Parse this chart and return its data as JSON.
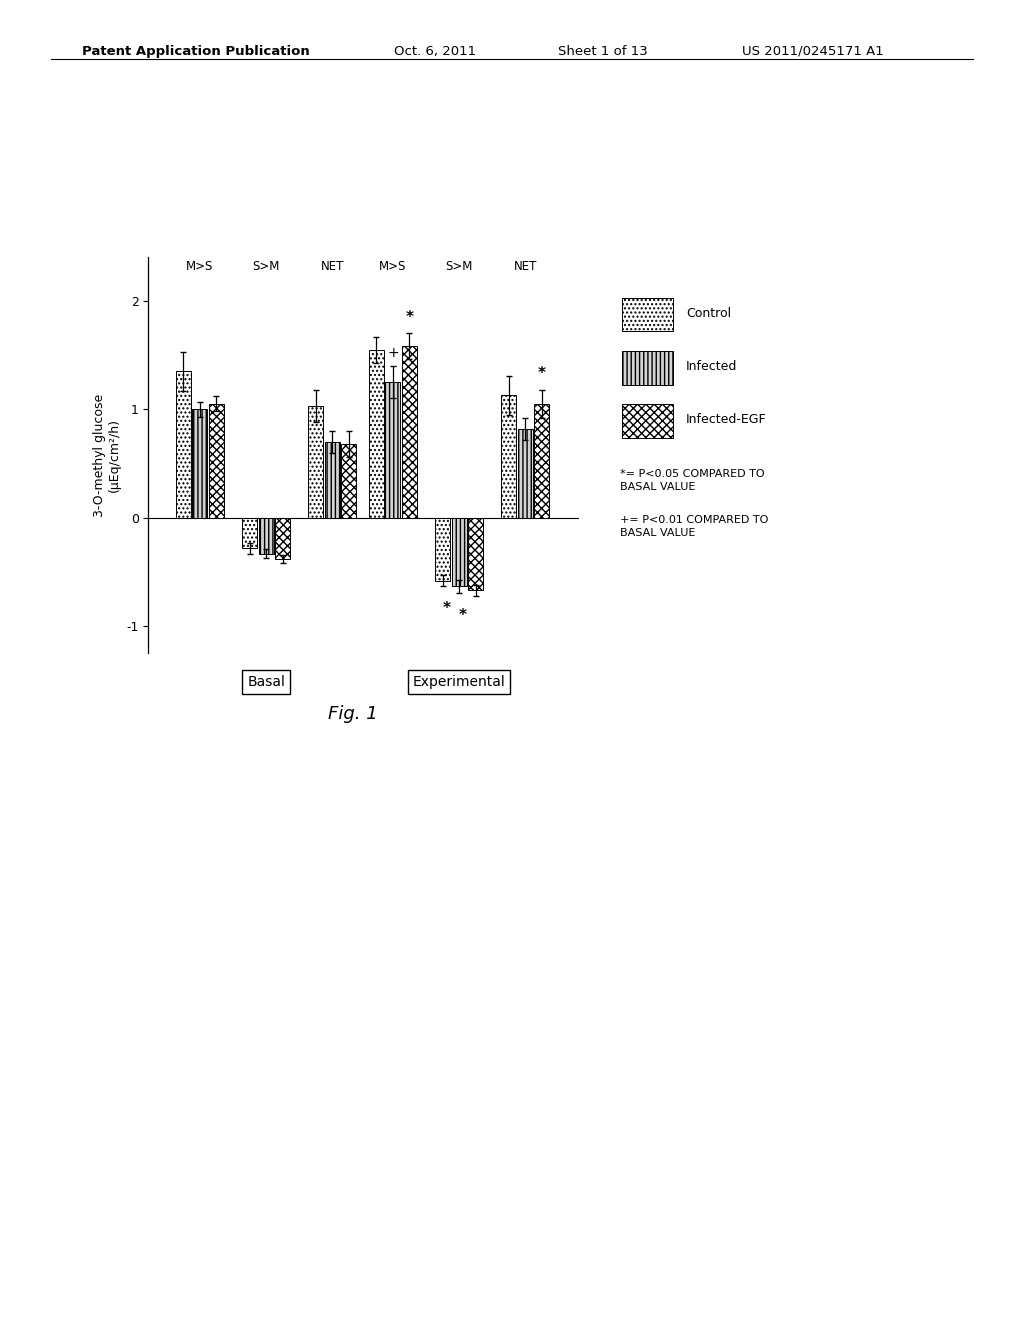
{
  "title_header": "Patent Application Publication",
  "title_date": "Oct. 6, 2011",
  "title_sheet": "Sheet 1 of 13",
  "title_patent": "US 2011/0245171 A1",
  "fig_label": "Fig. 1",
  "ylabel": "3-O-methyl glucose\n(μEq/cm²/h)",
  "ylim": [
    -1.25,
    2.4
  ],
  "yticks": [
    -1,
    0,
    1,
    2
  ],
  "bar_data": {
    "Basal": {
      "M>S": {
        "Control": 1.35,
        "Infected": 1.0,
        "InfectedEGF": 1.05,
        "Control_err": 0.18,
        "Infected_err": 0.07,
        "InfectedEGF_err": 0.07
      },
      "S>M": {
        "Control": -0.28,
        "Infected": -0.33,
        "InfectedEGF": -0.38,
        "Control_err": 0.05,
        "Infected_err": 0.04,
        "InfectedEGF_err": 0.04
      },
      "NET": {
        "Control": 1.03,
        "Infected": 0.7,
        "InfectedEGF": 0.68,
        "Control_err": 0.15,
        "Infected_err": 0.1,
        "InfectedEGF_err": 0.12
      }
    },
    "Experimental": {
      "M>S": {
        "Control": 1.55,
        "Infected": 1.25,
        "InfectedEGF": 1.58,
        "Control_err": 0.12,
        "Infected_err": 0.15,
        "InfectedEGF_err": 0.12
      },
      "S>M": {
        "Control": -0.58,
        "Infected": -0.63,
        "InfectedEGF": -0.67,
        "Control_err": 0.05,
        "Infected_err": 0.06,
        "InfectedEGF_err": 0.05
      },
      "NET": {
        "Control": 1.13,
        "Infected": 0.82,
        "InfectedEGF": 1.05,
        "Control_err": 0.18,
        "Infected_err": 0.1,
        "InfectedEGF_err": 0.13
      }
    }
  },
  "legend_items": [
    {
      "label": "Control",
      "hatch": "....",
      "facecolor": "white",
      "edgecolor": "black"
    },
    {
      "label": "Infected",
      "hatch": "||||",
      "facecolor": "lightgray",
      "edgecolor": "black"
    },
    {
      "label": "Infected-EGF",
      "hatch": "xxxx",
      "facecolor": "white",
      "edgecolor": "black"
    }
  ],
  "note1": "*= P<0.05 COMPARED TO\nBASAL VALUE",
  "note2": "+= P<0.01 COMPARED TO\nBASAL VALUE",
  "background_color": "#ffffff",
  "bar_width": 0.18
}
